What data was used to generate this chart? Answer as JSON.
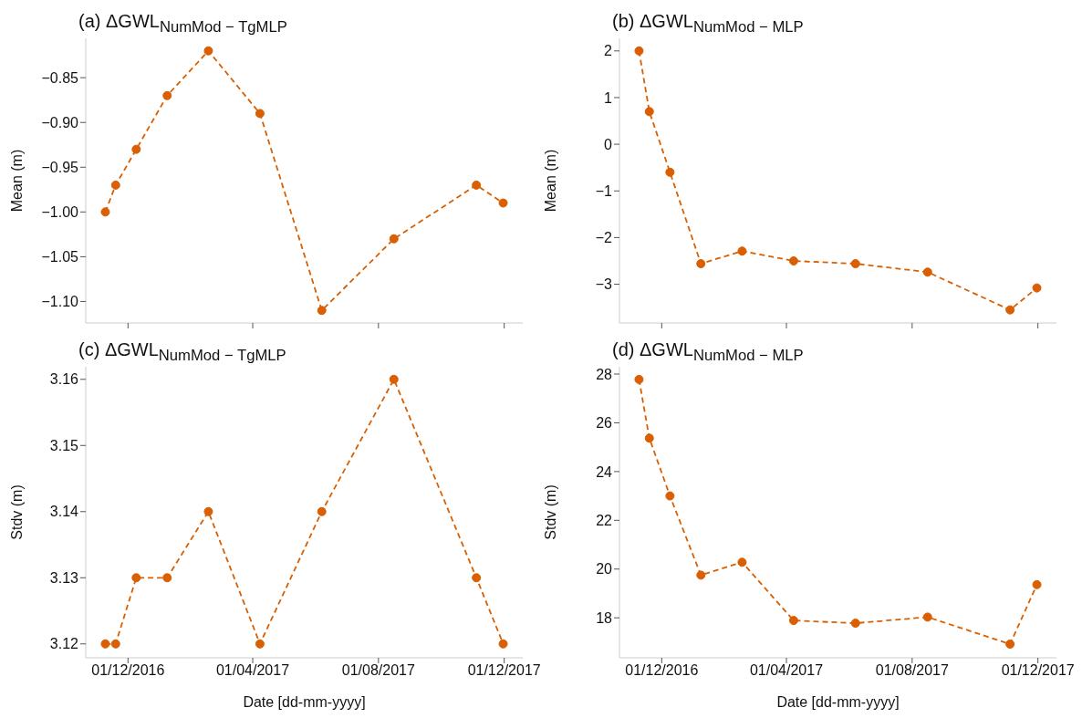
{
  "chart_data": [
    {
      "type": "line",
      "title": "(a) ΔGWL$_{NumMod − TgMLP}$",
      "ylabel": "Mean (m)",
      "x": [
        "2016-11-09",
        "2016-11-19",
        "2016-12-09",
        "2017-01-08",
        "2017-02-17",
        "2017-04-08",
        "2017-06-07",
        "2017-08-16",
        "2017-11-04",
        "2017-11-30"
      ],
      "series": [
        {
          "color": "#d95f02",
          "values": [
            -1.0,
            -0.97,
            -0.93,
            -0.87,
            -0.82,
            -0.89,
            -1.11,
            -1.03,
            -0.97,
            -0.99
          ]
        }
      ],
      "xlim": [
        "2016-10-21",
        "2017-12-19"
      ],
      "xticks": [
        {
          "value": "2016-12-01",
          "label": null
        },
        {
          "value": "2017-04-01",
          "label": null
        },
        {
          "value": "2017-08-01",
          "label": null
        },
        {
          "value": "2017-12-01",
          "label": null
        }
      ],
      "ylim": [
        -1.124,
        -0.806
      ],
      "yticks": [
        {
          "value": -1.1,
          "label": "−1.10"
        },
        {
          "value": -1.05,
          "label": "−1.05"
        },
        {
          "value": -1.0,
          "label": "−1.00"
        },
        {
          "value": -0.95,
          "label": "−0.95"
        },
        {
          "value": -0.9,
          "label": "−0.90"
        },
        {
          "value": -0.85,
          "label": "−0.85"
        }
      ],
      "tick_labels": "y",
      "marker": "circle",
      "line_style": "dashed",
      "grid": false,
      "legend": false
    },
    {
      "type": "line",
      "title": "(b) ΔGWL$_{NumMod − MLP}$",
      "ylabel": "Mean (m)",
      "x": [
        "2016-11-09",
        "2016-11-19",
        "2016-12-09",
        "2017-01-08",
        "2017-02-17",
        "2017-04-08",
        "2017-06-07",
        "2017-08-16",
        "2017-11-04",
        "2017-11-30"
      ],
      "series": [
        {
          "color": "#d95f02",
          "values": [
            2.0,
            0.7,
            -0.6,
            -2.56,
            -2.29,
            -2.5,
            -2.56,
            -2.74,
            -3.55,
            -3.08
          ]
        }
      ],
      "xlim": [
        "2016-10-21",
        "2017-12-19"
      ],
      "xticks": [
        {
          "value": "2016-12-01",
          "label": null
        },
        {
          "value": "2017-04-01",
          "label": null
        },
        {
          "value": "2017-08-01",
          "label": null
        },
        {
          "value": "2017-12-01",
          "label": null
        }
      ],
      "ylim": [
        -3.83,
        2.27
      ],
      "yticks": [
        {
          "value": -3,
          "label": "−3"
        },
        {
          "value": -2,
          "label": "−2"
        },
        {
          "value": -1,
          "label": "−1"
        },
        0,
        1,
        2
      ],
      "tick_labels": "y",
      "marker": "circle",
      "line_style": "dashed",
      "grid": false,
      "legend": false
    },
    {
      "type": "line",
      "title": "(c) ΔGWL$_{NumMod − TgMLP}$",
      "xlabel": "Date [dd-mm-yyyy]",
      "ylabel": "Stdv (m)",
      "x": [
        "2016-11-09",
        "2016-11-19",
        "2016-12-09",
        "2017-01-08",
        "2017-02-17",
        "2017-04-08",
        "2017-06-07",
        "2017-08-16",
        "2017-11-04",
        "2017-11-30"
      ],
      "series": [
        {
          "color": "#d95f02",
          "values": [
            3.12,
            3.12,
            3.13,
            3.13,
            3.14,
            3.12,
            3.14,
            3.16,
            3.13,
            3.12
          ]
        }
      ],
      "xlim": [
        "2016-10-21",
        "2017-12-19"
      ],
      "xticks": [
        {
          "value": "2016-12-01",
          "label": "01/12/2016"
        },
        {
          "value": "2017-04-01",
          "label": "01/04/2017"
        },
        {
          "value": "2017-08-01",
          "label": "01/08/2017"
        },
        {
          "value": "2017-12-01",
          "label": "01/12/2017"
        }
      ],
      "ylim": [
        3.1179,
        3.1619
      ],
      "yticks": [
        3.12,
        3.13,
        3.14,
        3.15,
        3.16
      ],
      "marker": "circle",
      "line_style": "dashed",
      "grid": false,
      "legend": false
    },
    {
      "type": "line",
      "title": "(d) ΔGWL$_{NumMod − MLP}$",
      "xlabel": "Date [dd-mm-yyyy]",
      "ylabel": "Stdv (m)",
      "x": [
        "2016-11-09",
        "2016-11-19",
        "2016-12-09",
        "2017-01-08",
        "2017-02-17",
        "2017-04-08",
        "2017-06-07",
        "2017-08-16",
        "2017-11-04",
        "2017-11-30"
      ],
      "series": [
        {
          "color": "#d95f02",
          "values": [
            27.78,
            25.37,
            23.0,
            19.75,
            20.28,
            17.89,
            17.78,
            18.03,
            16.92,
            19.36
          ]
        }
      ],
      "xlim": [
        "2016-10-21",
        "2017-12-19"
      ],
      "xticks": [
        {
          "value": "2016-12-01",
          "label": "01/12/2016"
        },
        {
          "value": "2017-04-01",
          "label": "01/04/2017"
        },
        {
          "value": "2017-08-01",
          "label": "01/08/2017"
        },
        {
          "value": "2017-12-01",
          "label": "01/12/2017"
        }
      ],
      "ylim": [
        16.36,
        28.3
      ],
      "yticks": [
        18,
        20,
        22,
        24,
        26,
        28
      ],
      "marker": "circle",
      "line_style": "dashed",
      "grid": false,
      "legend": false
    }
  ]
}
